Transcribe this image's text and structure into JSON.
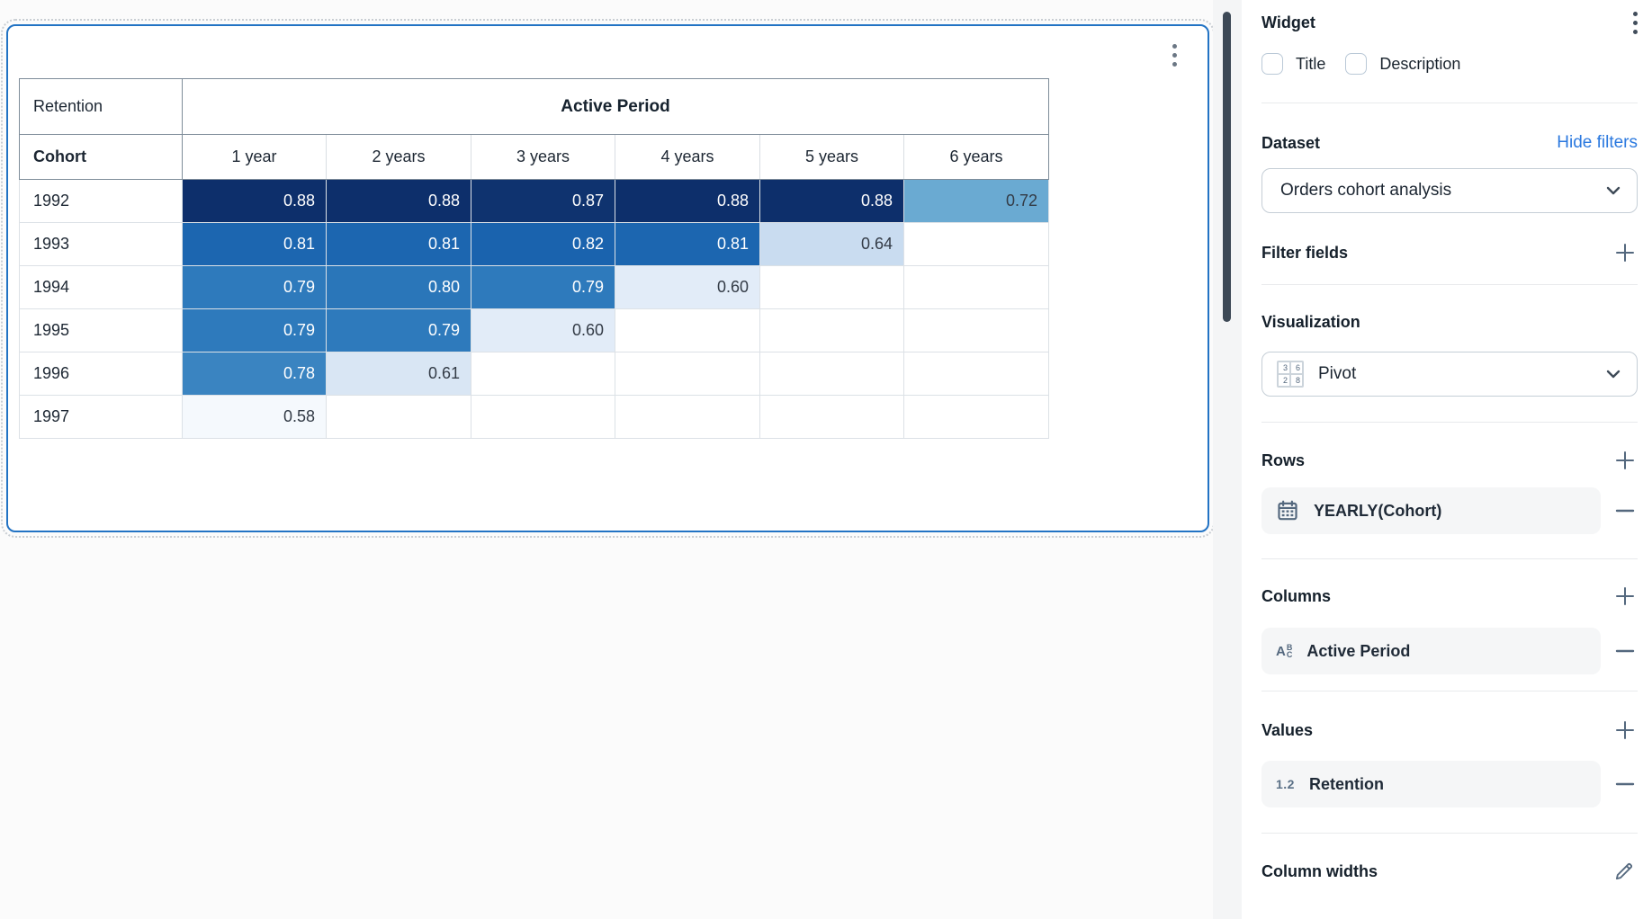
{
  "canvas": {
    "table": {
      "corner_label": "Retention",
      "col_group_label": "Active Period",
      "row_dim_label": "Cohort",
      "columns": [
        "1 year",
        "2 years",
        "3 years",
        "4 years",
        "5 years",
        "6 years"
      ],
      "rows": [
        {
          "label": "1992",
          "values": [
            "0.88",
            "0.88",
            "0.87",
            "0.88",
            "0.88",
            "0.72"
          ]
        },
        {
          "label": "1993",
          "values": [
            "0.81",
            "0.81",
            "0.82",
            "0.81",
            "0.64",
            ""
          ]
        },
        {
          "label": "1994",
          "values": [
            "0.79",
            "0.80",
            "0.79",
            "0.60",
            "",
            ""
          ]
        },
        {
          "label": "1995",
          "values": [
            "0.79",
            "0.79",
            "0.60",
            "",
            "",
            ""
          ]
        },
        {
          "label": "1996",
          "values": [
            "0.78",
            "0.61",
            "",
            "",
            "",
            ""
          ]
        },
        {
          "label": "1997",
          "values": [
            "0.58",
            "",
            "",
            "",
            "",
            ""
          ]
        }
      ],
      "heat_colors": {
        "0.88": {
          "bg": "#0d2f6b",
          "fg": "#ffffff"
        },
        "0.87": {
          "bg": "#0f336f",
          "fg": "#ffffff"
        },
        "0.82": {
          "bg": "#1a63ae",
          "fg": "#ffffff"
        },
        "0.81": {
          "bg": "#1c66b0",
          "fg": "#ffffff"
        },
        "0.80": {
          "bg": "#2a76b9",
          "fg": "#ffffff"
        },
        "0.79": {
          "bg": "#2e7abc",
          "fg": "#ffffff"
        },
        "0.78": {
          "bg": "#3a84c1",
          "fg": "#ffffff"
        },
        "0.72": {
          "bg": "#6aaad2",
          "fg": "#333b46"
        },
        "0.64": {
          "bg": "#c9dcf0",
          "fg": "#333b46"
        },
        "0.61": {
          "bg": "#d9e6f4",
          "fg": "#333b46"
        },
        "0.60": {
          "bg": "#e2ecf8",
          "fg": "#333b46"
        },
        "0.58": {
          "bg": "#f5f9fd",
          "fg": "#333b46"
        }
      }
    }
  },
  "sidebar": {
    "title": "Widget",
    "checkboxes": {
      "title": "Title",
      "description": "Description"
    },
    "dataset": {
      "heading": "Dataset",
      "hide_filters_link": "Hide filters",
      "selected": "Orders cohort analysis"
    },
    "filter_fields": {
      "heading": "Filter fields"
    },
    "visualization": {
      "heading": "Visualization",
      "selected": "Pivot",
      "pivot_icon_numbers": [
        "3",
        "6",
        "2",
        "8"
      ]
    },
    "rows_section": {
      "heading": "Rows",
      "item": "YEARLY(Cohort)"
    },
    "columns_section": {
      "heading": "Columns",
      "item": "Active Period"
    },
    "values_section": {
      "heading": "Values",
      "item_badge": "1.2",
      "item": "Retention"
    },
    "column_widths": {
      "heading": "Column widths"
    }
  },
  "colors": {
    "accent_blue": "#2273c4",
    "link_blue": "#2b79df",
    "icon_gray_blue": "#54687e",
    "scrollbar_thumb": "#3d4956"
  }
}
